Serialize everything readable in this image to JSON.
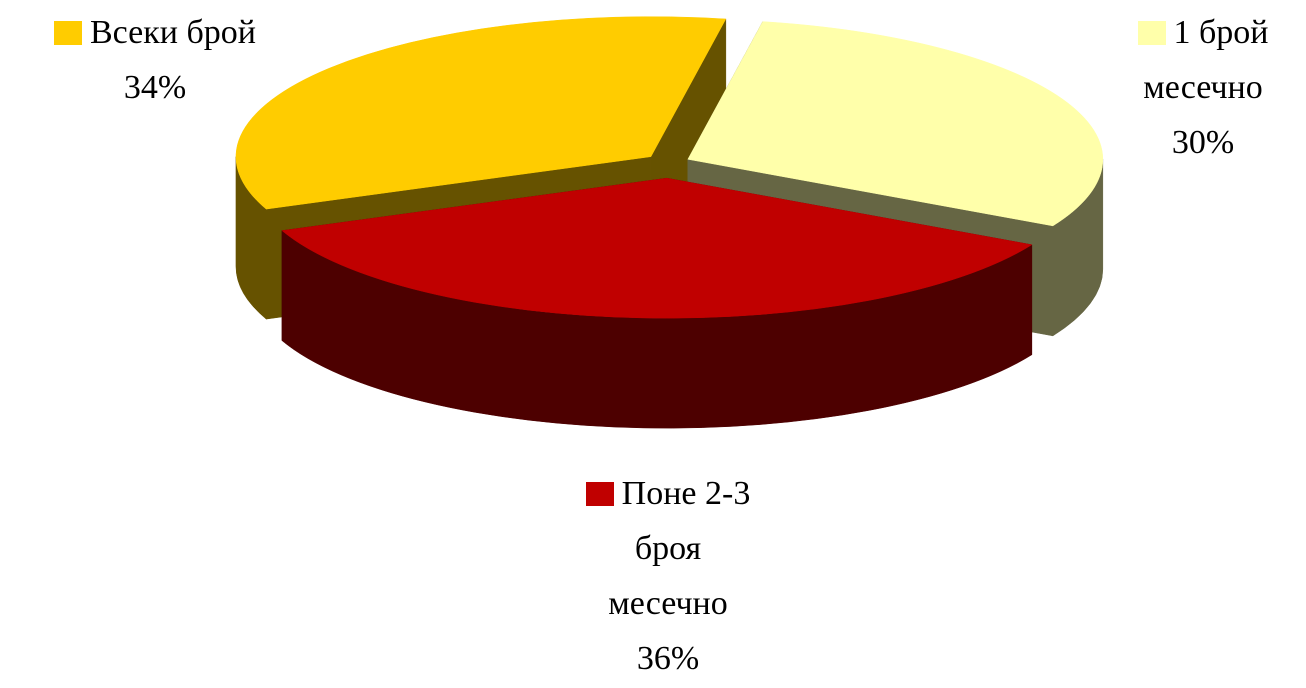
{
  "chart_data": {
    "type": "pie",
    "categories": [
      "Всеки брой",
      "1 брой месечно",
      "Поне 2-3 броя месечно"
    ],
    "values": [
      34,
      30,
      36
    ],
    "value_labels": [
      "34%",
      "30%",
      "36%"
    ],
    "colors": [
      "#ffcc00",
      "#ffffaa",
      "#c00000"
    ]
  }
}
